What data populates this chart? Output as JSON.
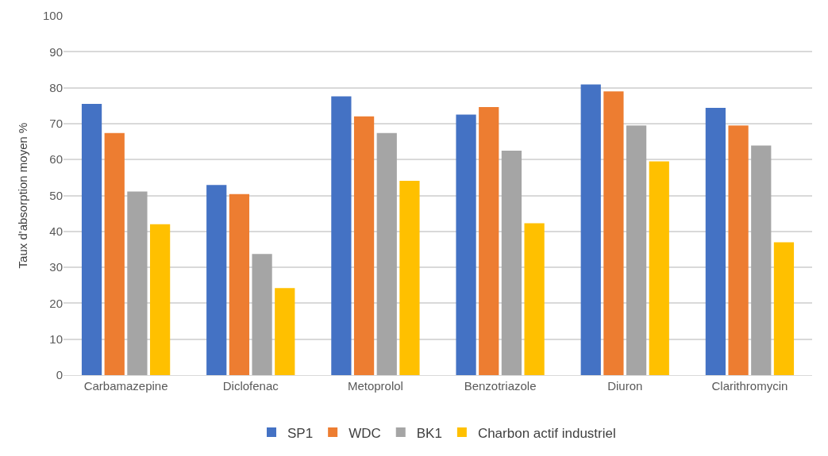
{
  "chart_data": {
    "type": "bar",
    "ylabel": "Taux d'absorption moyen %",
    "categories": [
      "Carbamazepine",
      "Diclofenac",
      "Metoprolol",
      "Benzotriazole",
      "Diuron",
      "Clarithromycin"
    ],
    "series": [
      {
        "name": "SP1",
        "color": "#4472c4",
        "values": [
          75.5,
          52.9,
          77.6,
          72.5,
          80.9,
          74.4
        ]
      },
      {
        "name": "WDC",
        "color": "#ed7d31",
        "values": [
          67.4,
          50.4,
          72.0,
          74.6,
          79.0,
          69.5
        ]
      },
      {
        "name": "BK1",
        "color": "#a5a5a5",
        "values": [
          51.1,
          33.7,
          67.4,
          62.5,
          69.5,
          63.9
        ]
      },
      {
        "name": "Charbon actif industriel",
        "color": "#ffc000",
        "values": [
          42.0,
          24.2,
          54.1,
          42.3,
          59.5,
          37.0
        ]
      }
    ],
    "ylim": [
      0,
      100
    ],
    "yticks": [
      0,
      10,
      20,
      30,
      40,
      50,
      60,
      70,
      80,
      90,
      100
    ],
    "grid": "y",
    "legend": "bottom"
  }
}
